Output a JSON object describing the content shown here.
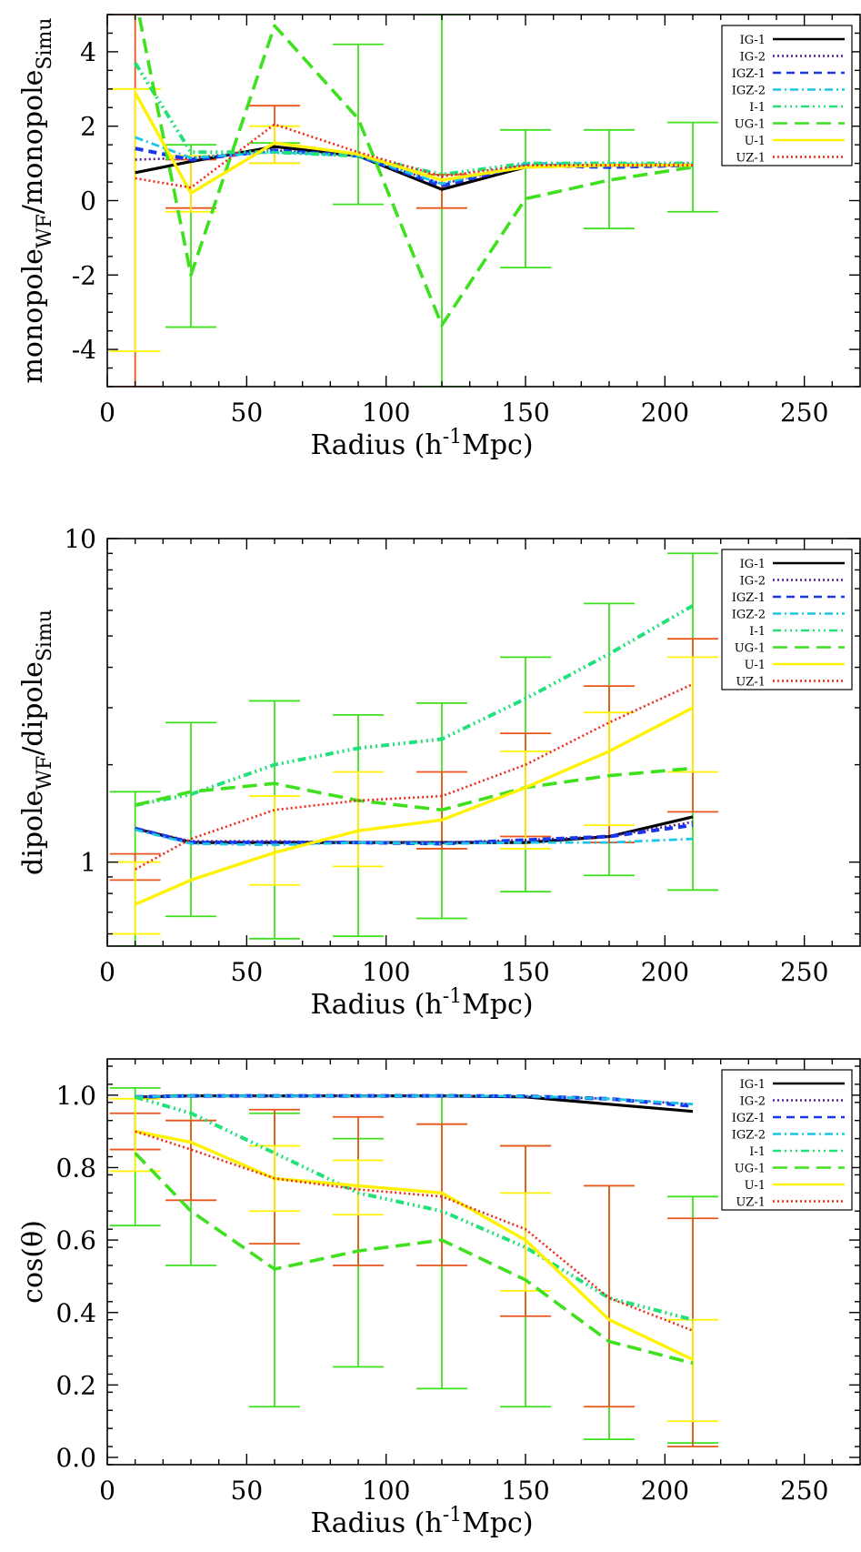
{
  "colors": {
    "IG-1": "#000000",
    "IG-2": "#5a1a9a",
    "IGZ-1": "#1a35ee",
    "IGZ-2": "#19c6e6",
    "I-1": "#22e07a",
    "UG-1": "#3fe01e",
    "U-1": "#fff200",
    "UZ-1": "#ee2a1a",
    "errbar_green": "#3fe01e",
    "errbar_orange": "#e8561c",
    "errbar_yellow": "#fff200"
  },
  "legend": {
    "entries": [
      "IG-1",
      "IG-2",
      "IGZ-1",
      "IGZ-2",
      "I-1",
      "UG-1",
      "U-1",
      "UZ-1"
    ],
    "placement": "top-right"
  },
  "chart_data": [
    {
      "type": "line",
      "xlabel_main": "Radius (h",
      "xlabel_sup": "-1",
      "xlabel_tail": "Mpc)",
      "ylabel_a": "monopole",
      "ylabel_a_sub": "WF",
      "ylabel_b": "/monopole",
      "ylabel_b_sub": "Simu",
      "xlim": [
        0,
        270
      ],
      "ylim": [
        -5,
        5
      ],
      "yscale": "linear",
      "xticks": [
        0,
        50,
        100,
        150,
        200,
        250
      ],
      "xtick_labels": [
        "0",
        "50",
        "100",
        "150",
        "200",
        "250"
      ],
      "yticks": [
        -4,
        -2,
        0,
        2,
        4
      ],
      "ytick_labels": [
        "-4",
        "-2",
        "0",
        "2",
        "4"
      ],
      "x": [
        10,
        30,
        60,
        90,
        120,
        150,
        180,
        210
      ],
      "series": [
        {
          "name": "IG-1",
          "values": [
            0.75,
            1.05,
            1.45,
            1.2,
            0.3,
            0.9,
            0.95,
            0.95
          ]
        },
        {
          "name": "IG-2",
          "values": [
            1.1,
            1.15,
            1.35,
            1.2,
            0.45,
            0.95,
            0.95,
            1.0
          ]
        },
        {
          "name": "IGZ-1",
          "values": [
            1.4,
            1.1,
            1.35,
            1.2,
            0.4,
            0.95,
            0.9,
            0.95
          ]
        },
        {
          "name": "IGZ-2",
          "values": [
            1.7,
            1.15,
            1.3,
            1.2,
            0.45,
            1.0,
            1.0,
            0.95
          ]
        },
        {
          "name": "I-1",
          "values": [
            3.7,
            1.3,
            1.3,
            1.2,
            0.7,
            1.0,
            1.0,
            1.0
          ]
        },
        {
          "name": "UG-1",
          "values": [
            5.5,
            -2.0,
            4.7,
            2.2,
            -3.35,
            0.05,
            0.55,
            0.9
          ]
        },
        {
          "name": "U-1",
          "values": [
            2.9,
            0.2,
            1.55,
            1.25,
            0.55,
            0.9,
            0.95,
            0.95
          ]
        },
        {
          "name": "UZ-1",
          "values": [
            0.6,
            0.35,
            2.05,
            1.3,
            0.65,
            0.95,
            0.95,
            0.95
          ]
        }
      ],
      "errorbars": [
        {
          "color_key": "errbar_green",
          "x": [
            30,
            60,
            90,
            120,
            150,
            180,
            210
          ],
          "low": [
            -3.4,
            1.0,
            -0.1,
            -5.0,
            -1.8,
            -0.75,
            -0.3
          ],
          "high": [
            1.5,
            1.55,
            4.2,
            5.0,
            1.9,
            1.9,
            2.1
          ]
        },
        {
          "color_key": "errbar_orange",
          "x": [
            10,
            30,
            60,
            120
          ],
          "low": [
            -5.0,
            -0.2,
            1.0,
            -0.2
          ],
          "high": [
            5.0,
            1.1,
            2.55,
            0.7
          ]
        },
        {
          "color_key": "errbar_yellow",
          "x": [
            10,
            30,
            60
          ],
          "low": [
            -4.05,
            -0.3,
            1.0
          ],
          "high": [
            3.0,
            1.2,
            2.0
          ]
        }
      ]
    },
    {
      "type": "line",
      "xlabel_main": "Radius (h",
      "xlabel_sup": "-1",
      "xlabel_tail": "Mpc)",
      "ylabel_a": "dipole",
      "ylabel_a_sub": "WF",
      "ylabel_b": "/dipole",
      "ylabel_b_sub": "Simu",
      "xlim": [
        0,
        270
      ],
      "ylim": [
        0.55,
        10
      ],
      "yscale": "log",
      "xticks": [
        0,
        50,
        100,
        150,
        200,
        250
      ],
      "xtick_labels": [
        "0",
        "50",
        "100",
        "150",
        "200",
        "250"
      ],
      "yticks": [
        1,
        10
      ],
      "ytick_labels": [
        "1",
        "10"
      ],
      "x": [
        10,
        30,
        60,
        90,
        120,
        150,
        180,
        210
      ],
      "series": [
        {
          "name": "IG-1",
          "values": [
            1.27,
            1.15,
            1.15,
            1.15,
            1.15,
            1.15,
            1.2,
            1.38
          ]
        },
        {
          "name": "IG-2",
          "values": [
            1.27,
            1.16,
            1.16,
            1.15,
            1.15,
            1.17,
            1.2,
            1.33
          ]
        },
        {
          "name": "IGZ-1",
          "values": [
            1.27,
            1.15,
            1.15,
            1.15,
            1.14,
            1.17,
            1.2,
            1.3
          ]
        },
        {
          "name": "IGZ-2",
          "values": [
            1.26,
            1.14,
            1.13,
            1.15,
            1.14,
            1.15,
            1.15,
            1.18
          ]
        },
        {
          "name": "I-1",
          "values": [
            1.5,
            1.62,
            2.0,
            2.25,
            2.4,
            3.2,
            4.4,
            6.2
          ]
        },
        {
          "name": "UG-1",
          "values": [
            1.5,
            1.65,
            1.75,
            1.55,
            1.45,
            1.7,
            1.85,
            1.95
          ]
        },
        {
          "name": "U-1",
          "values": [
            0.74,
            0.88,
            1.07,
            1.25,
            1.35,
            1.7,
            2.2,
            3.0
          ]
        },
        {
          "name": "UZ-1",
          "values": [
            0.95,
            1.18,
            1.45,
            1.55,
            1.6,
            2.0,
            2.7,
            3.55
          ]
        }
      ],
      "errorbars": [
        {
          "color_key": "errbar_green",
          "x": [
            10,
            30,
            60,
            90,
            120,
            150,
            180,
            210
          ],
          "low": [
            0.55,
            0.68,
            0.58,
            0.59,
            0.67,
            0.81,
            0.91,
            0.82
          ],
          "high": [
            1.65,
            2.7,
            3.15,
            2.85,
            3.1,
            4.3,
            6.3,
            9.0
          ]
        },
        {
          "color_key": "errbar_orange",
          "x": [
            10,
            120,
            150,
            180,
            210
          ],
          "low": [
            0.88,
            1.1,
            1.2,
            1.15,
            1.43
          ],
          "high": [
            1.06,
            1.9,
            2.5,
            3.5,
            4.9
          ]
        },
        {
          "color_key": "errbar_yellow",
          "x": [
            10,
            60,
            90,
            150,
            180,
            210
          ],
          "low": [
            0.6,
            0.85,
            0.97,
            1.1,
            1.3,
            1.9
          ],
          "high": [
            1.0,
            1.6,
            1.9,
            2.2,
            2.9,
            4.3
          ]
        }
      ]
    },
    {
      "type": "line",
      "xlabel_main": "Radius (h",
      "xlabel_sup": "-1",
      "xlabel_tail": "Mpc)",
      "ylabel_a": "cos(θ)",
      "ylabel_a_sub": "",
      "ylabel_b": "",
      "ylabel_b_sub": "",
      "xlim": [
        0,
        270
      ],
      "ylim": [
        -0.02,
        1.1
      ],
      "yscale": "linear",
      "xticks": [
        0,
        50,
        100,
        150,
        200,
        250
      ],
      "xtick_labels": [
        "0",
        "50",
        "100",
        "150",
        "200",
        "250"
      ],
      "yticks": [
        0.0,
        0.2,
        0.4,
        0.6,
        0.8,
        1.0
      ],
      "ytick_labels": [
        "0.0",
        "0.2",
        "0.4",
        "0.6",
        "0.8",
        "1.0"
      ],
      "x": [
        10,
        30,
        60,
        90,
        120,
        150,
        180,
        210
      ],
      "series": [
        {
          "name": "IG-1",
          "values": [
            0.995,
            0.998,
            0.998,
            0.998,
            0.998,
            0.995,
            0.975,
            0.955
          ]
        },
        {
          "name": "IG-2",
          "values": [
            0.995,
            0.998,
            0.998,
            0.998,
            0.998,
            0.997,
            0.99,
            0.975
          ]
        },
        {
          "name": "IGZ-1",
          "values": [
            0.995,
            0.998,
            0.998,
            0.998,
            0.998,
            0.997,
            0.99,
            0.97
          ]
        },
        {
          "name": "IGZ-2",
          "values": [
            0.995,
            0.998,
            0.998,
            0.998,
            0.998,
            0.997,
            0.99,
            0.975
          ]
        },
        {
          "name": "I-1",
          "values": [
            0.995,
            0.95,
            0.84,
            0.73,
            0.68,
            0.58,
            0.44,
            0.38
          ]
        },
        {
          "name": "UG-1",
          "values": [
            0.84,
            0.68,
            0.52,
            0.57,
            0.6,
            0.49,
            0.32,
            0.26
          ]
        },
        {
          "name": "U-1",
          "values": [
            0.9,
            0.87,
            0.77,
            0.75,
            0.73,
            0.6,
            0.38,
            0.27
          ]
        },
        {
          "name": "UZ-1",
          "values": [
            0.9,
            0.85,
            0.77,
            0.74,
            0.72,
            0.63,
            0.44,
            0.35
          ]
        }
      ],
      "errorbars": [
        {
          "color_key": "errbar_green",
          "x": [
            10,
            30,
            60,
            90,
            120,
            150,
            180,
            210
          ],
          "low": [
            0.64,
            0.53,
            0.14,
            0.25,
            0.19,
            0.14,
            0.05,
            0.04
          ],
          "high": [
            1.02,
            1.0,
            0.95,
            0.88,
            1.0,
            0.86,
            0.75,
            0.72
          ]
        },
        {
          "color_key": "errbar_orange",
          "x": [
            10,
            30,
            60,
            90,
            120,
            150,
            180,
            210
          ],
          "low": [
            0.85,
            0.71,
            0.59,
            0.53,
            0.53,
            0.39,
            0.14,
            0.03
          ],
          "high": [
            0.95,
            0.93,
            0.96,
            0.94,
            0.92,
            0.86,
            0.75,
            0.66
          ]
        },
        {
          "color_key": "errbar_yellow",
          "x": [
            10,
            60,
            90,
            150,
            210
          ],
          "low": [
            0.79,
            0.68,
            0.67,
            0.46,
            0.1
          ],
          "high": [
            0.99,
            0.86,
            0.82,
            0.73,
            0.38
          ]
        }
      ]
    }
  ]
}
